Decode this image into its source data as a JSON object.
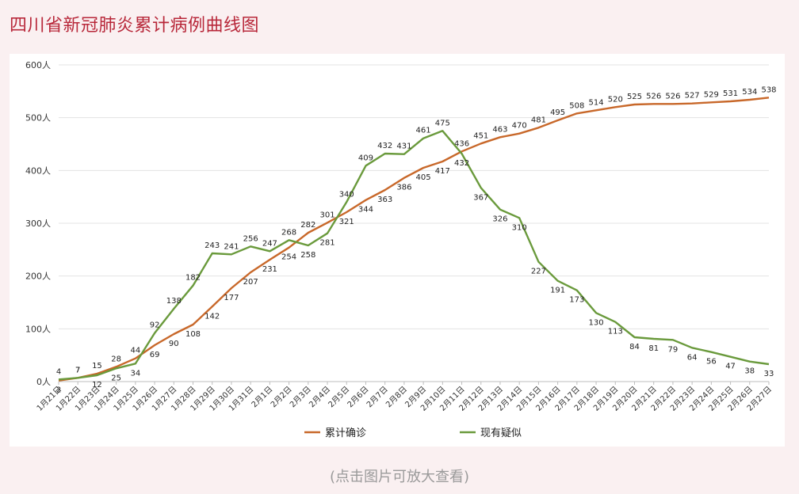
{
  "title": "四川省新冠肺炎累计病例曲线图",
  "caption": "(点击图片可放大查看)",
  "colors": {
    "confirmed": "#c8682a",
    "suspected": "#6a9a3c",
    "title": "#b8283a",
    "background": "#faf0f1"
  },
  "chart_data": {
    "type": "line",
    "categories": [
      "1月21日",
      "1月22日",
      "1月23日",
      "1月24日",
      "1月25日",
      "1月26日",
      "1月27日",
      "1月28日",
      "1月29日",
      "1月30日",
      "1月31日",
      "2月1日",
      "2月2日",
      "2月3日",
      "2月4日",
      "2月5日",
      "2月6日",
      "2月7日",
      "2月8日",
      "2月9日",
      "2月10日",
      "2月11日",
      "2月12日",
      "2月13日",
      "2月14日",
      "2月15日",
      "2月16日",
      "2月17日",
      "2月18日",
      "2月19日",
      "2月20日",
      "2月21日",
      "2月22日",
      "2月23日",
      "2月24日",
      "2月25日",
      "2月26日",
      "2月27日"
    ],
    "series": [
      {
        "name": "累计确诊",
        "color": "#c8682a",
        "values": [
          2,
          7,
          15,
          28,
          44,
          69,
          90,
          108,
          142,
          177,
          207,
          231,
          254,
          282,
          301,
          321,
          344,
          363,
          386,
          405,
          417,
          436,
          451,
          463,
          470,
          481,
          495,
          508,
          514,
          520,
          525,
          526,
          526,
          527,
          529,
          531,
          534,
          538
        ]
      },
      {
        "name": "现有疑似",
        "color": "#6a9a3c",
        "values": [
          4,
          7,
          12,
          25,
          34,
          92,
          138,
          182,
          243,
          241,
          256,
          247,
          268,
          258,
          281,
          340,
          409,
          432,
          431,
          461,
          475,
          432,
          367,
          326,
          310,
          227,
          191,
          173,
          130,
          113,
          84,
          81,
          79,
          64,
          56,
          47,
          38,
          33
        ]
      }
    ],
    "yticks": [
      "0人",
      "100人",
      "200人",
      "300人",
      "400人",
      "500人",
      "600人"
    ],
    "ylim": [
      0,
      600
    ],
    "grid": true,
    "legend_position": "bottom"
  }
}
